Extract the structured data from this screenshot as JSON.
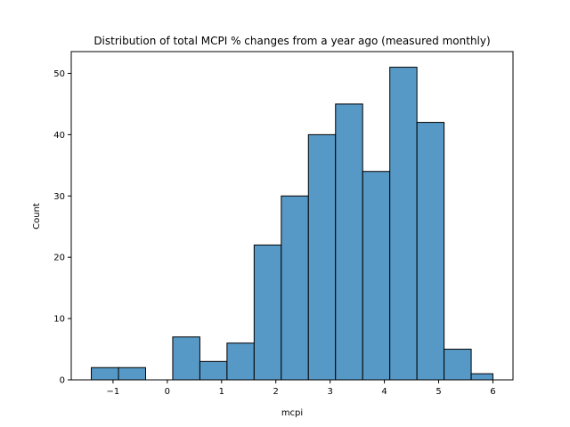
{
  "chart_data": {
    "type": "bar",
    "title": "Distribution of total MCPI % changes from a year ago (measured monthly)",
    "xlabel": "mcpi",
    "ylabel": "Count",
    "bar_color": "#5799c6",
    "edge_color": "#000000",
    "bin_edges": [
      -1.4,
      -0.9,
      -0.4,
      0.1,
      0.6,
      1.1,
      1.6,
      2.1,
      2.6,
      3.1,
      3.6,
      4.1,
      4.6,
      5.1,
      5.6,
      6.0
    ],
    "values": [
      2,
      2,
      0,
      7,
      3,
      6,
      22,
      30,
      40,
      45,
      34,
      51,
      42,
      5,
      1
    ],
    "xlim": [
      -1.77,
      6.37
    ],
    "ylim": [
      0,
      53.55
    ],
    "xticks": [
      -1,
      0,
      1,
      2,
      3,
      4,
      5,
      6
    ],
    "xtick_labels": [
      "−1",
      "0",
      "1",
      "2",
      "3",
      "4",
      "5",
      "6"
    ],
    "yticks": [
      0,
      10,
      20,
      30,
      40,
      50
    ],
    "ytick_labels": [
      "0",
      "10",
      "20",
      "30",
      "40",
      "50"
    ],
    "grid": false,
    "legend": "none"
  }
}
